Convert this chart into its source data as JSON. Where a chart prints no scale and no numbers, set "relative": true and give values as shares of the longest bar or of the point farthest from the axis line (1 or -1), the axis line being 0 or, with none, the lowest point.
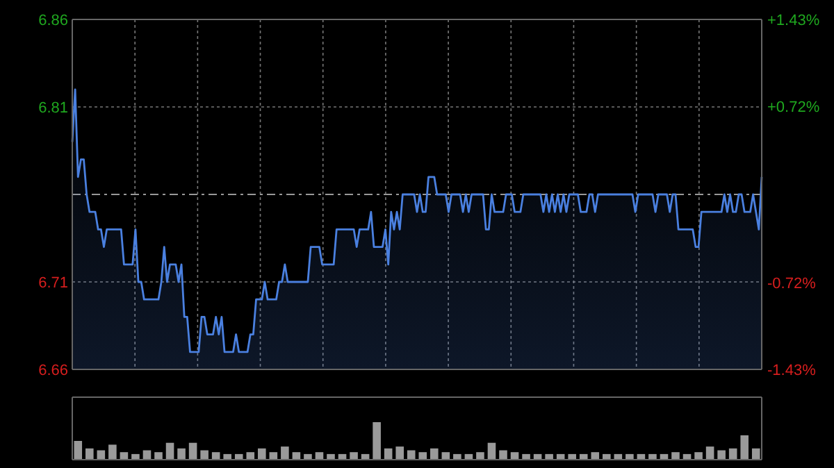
{
  "chart_data": [
    {
      "type": "area",
      "categories": [
        null,
        null,
        null,
        null,
        null,
        null,
        null,
        null,
        null,
        null,
        null,
        null,
        null,
        null,
        null,
        null,
        null,
        null,
        null,
        null,
        null,
        null,
        null,
        null,
        null,
        null,
        null,
        null,
        null,
        null,
        null,
        null,
        null,
        null,
        null,
        null,
        null,
        null,
        null,
        null,
        null,
        null,
        null,
        null,
        null,
        null,
        null,
        null,
        null,
        null,
        null,
        null,
        null,
        null,
        null,
        null,
        null,
        null,
        null,
        null,
        null,
        null,
        null,
        null,
        null,
        null,
        null,
        null,
        null,
        null,
        null,
        null,
        null,
        null,
        null,
        null,
        null,
        null,
        null,
        null,
        null,
        null,
        null,
        null,
        null,
        null,
        null,
        null,
        null,
        null,
        null,
        null,
        null,
        null,
        null,
        null,
        null,
        null,
        null,
        null,
        null,
        null,
        null,
        null,
        null,
        null,
        null,
        null,
        null,
        null,
        null,
        null,
        null,
        null,
        null,
        null,
        null,
        null,
        null,
        null,
        null,
        null,
        null,
        null,
        null,
        null,
        null,
        null,
        null,
        null,
        null,
        null,
        null,
        null,
        null,
        null,
        null,
        null,
        null,
        null,
        null,
        null,
        null,
        null,
        null,
        null,
        null,
        null,
        null,
        null,
        null,
        null,
        null,
        null,
        null,
        null,
        null,
        null,
        null,
        null,
        null,
        null,
        null,
        null,
        null,
        null,
        null,
        null,
        null,
        null,
        null,
        null,
        null,
        null,
        null,
        null,
        null,
        null,
        null,
        null,
        null,
        null,
        null,
        null,
        null,
        null,
        null,
        null,
        null,
        null,
        null,
        null,
        null,
        null,
        null,
        null,
        null,
        null,
        null,
        null,
        null,
        null,
        null,
        null,
        null,
        null,
        null,
        null,
        null,
        null,
        null,
        null,
        null,
        null,
        null,
        null,
        null,
        null,
        null,
        null,
        null,
        null,
        null,
        null,
        null,
        null,
        null,
        null,
        null,
        null,
        null,
        null,
        null,
        null,
        null,
        null,
        null,
        null,
        null,
        null,
        null
      ],
      "series": [
        {
          "color": "#4a80e0",
          "values": [
            6.79,
            6.82,
            6.77,
            6.78,
            6.78,
            6.76,
            6.75,
            6.75,
            6.75,
            6.74,
            6.74,
            6.73,
            6.74,
            6.74,
            6.74,
            6.74,
            6.74,
            6.74,
            6.72,
            6.72,
            6.72,
            6.72,
            6.74,
            6.71,
            6.71,
            6.7,
            6.7,
            6.7,
            6.7,
            6.7,
            6.7,
            6.71,
            6.73,
            6.71,
            6.72,
            6.72,
            6.72,
            6.71,
            6.72,
            6.69,
            6.69,
            6.67,
            6.67,
            6.67,
            6.67,
            6.69,
            6.69,
            6.68,
            6.68,
            6.68,
            6.69,
            6.68,
            6.69,
            6.67,
            6.67,
            6.67,
            6.67,
            6.68,
            6.67,
            6.67,
            6.67,
            6.67,
            6.68,
            6.68,
            6.7,
            6.7,
            6.7,
            6.71,
            6.7,
            6.7,
            6.7,
            6.7,
            6.71,
            6.71,
            6.72,
            6.71,
            6.71,
            6.71,
            6.71,
            6.71,
            6.71,
            6.71,
            6.71,
            6.73,
            6.73,
            6.73,
            6.73,
            6.72,
            6.72,
            6.72,
            6.72,
            6.72,
            6.74,
            6.74,
            6.74,
            6.74,
            6.74,
            6.74,
            6.74,
            6.73,
            6.74,
            6.74,
            6.74,
            6.74,
            6.75,
            6.73,
            6.73,
            6.73,
            6.73,
            6.74,
            6.72,
            6.75,
            6.74,
            6.75,
            6.74,
            6.76,
            6.76,
            6.76,
            6.76,
            6.76,
            6.75,
            6.76,
            6.75,
            6.75,
            6.77,
            6.77,
            6.77,
            6.76,
            6.76,
            6.76,
            6.76,
            6.75,
            6.76,
            6.76,
            6.76,
            6.76,
            6.75,
            6.76,
            6.75,
            6.76,
            6.76,
            6.76,
            6.76,
            6.76,
            6.74,
            6.74,
            6.76,
            6.75,
            6.75,
            6.75,
            6.75,
            6.76,
            6.76,
            6.76,
            6.75,
            6.75,
            6.75,
            6.76,
            6.76,
            6.76,
            6.76,
            6.76,
            6.76,
            6.76,
            6.75,
            6.76,
            6.75,
            6.76,
            6.75,
            6.76,
            6.75,
            6.76,
            6.75,
            6.76,
            6.76,
            6.76,
            6.76,
            6.75,
            6.75,
            6.75,
            6.76,
            6.76,
            6.75,
            6.76,
            6.76,
            6.76,
            6.76,
            6.76,
            6.76,
            6.76,
            6.76,
            6.76,
            6.76,
            6.76,
            6.76,
            6.76,
            6.75,
            6.76,
            6.76,
            6.76,
            6.76,
            6.76,
            6.76,
            6.75,
            6.76,
            6.76,
            6.76,
            6.76,
            6.75,
            6.76,
            6.76,
            6.74,
            6.74,
            6.74,
            6.74,
            6.74,
            6.74,
            6.73,
            6.73,
            6.75,
            6.75,
            6.75,
            6.75,
            6.75,
            6.75,
            6.75,
            6.75,
            6.76,
            6.75,
            6.76,
            6.75,
            6.75,
            6.76,
            6.76,
            6.75,
            6.75,
            6.75,
            6.76,
            6.75,
            6.74,
            6.77
          ]
        }
      ],
      "ylim": [
        6.66,
        6.86
      ],
      "yticks": [
        6.66,
        6.71,
        6.81,
        6.86
      ],
      "y2lim": [
        -1.43,
        1.43
      ],
      "y2ticks": [
        {
          "value": -1.43,
          "label": "-1.43%"
        },
        {
          "value": -0.72,
          "label": "-0.72%"
        },
        {
          "value": 0.72,
          "label": "+0.72%"
        },
        {
          "value": 1.43,
          "label": "+1.43%"
        }
      ],
      "ref_lines": [
        {
          "axis": "y",
          "value": 6.76,
          "line_style": "dashed"
        }
      ],
      "grid": true,
      "tick_labels": "y"
    },
    {
      "type": "bar",
      "relative": true,
      "tick_labels": false,
      "categories": [
        null,
        null,
        null,
        null,
        null,
        null,
        null,
        null,
        null,
        null,
        null,
        null,
        null,
        null,
        null,
        null,
        null,
        null,
        null,
        null,
        null,
        null,
        null,
        null,
        null,
        null,
        null,
        null,
        null,
        null,
        null,
        null,
        null,
        null,
        null,
        null,
        null,
        null,
        null,
        null,
        null,
        null,
        null,
        null,
        null,
        null,
        null,
        null,
        null,
        null,
        null,
        null,
        null,
        null,
        null,
        null,
        null,
        null,
        null,
        null
      ],
      "series": [
        {
          "color": "#9a9a9a",
          "values": [
            0.5,
            0.3,
            0.25,
            0.4,
            0.2,
            0.15,
            0.25,
            0.2,
            0.45,
            0.3,
            0.45,
            0.25,
            0.2,
            0.15,
            0.15,
            0.2,
            0.3,
            0.2,
            0.35,
            0.2,
            0.15,
            0.2,
            0.15,
            0.15,
            0.2,
            0.15,
            1,
            0.3,
            0.35,
            0.25,
            0.2,
            0.3,
            0.2,
            0.15,
            0.15,
            0.2,
            0.45,
            0.25,
            0.2,
            0.15,
            0.15,
            0.15,
            0.15,
            0.15,
            0.15,
            0.2,
            0.15,
            0.15,
            0.15,
            0.15,
            0.15,
            0.15,
            0.2,
            0.15,
            0.2,
            0.35,
            0.25,
            0.3,
            0.65,
            0.3
          ]
        }
      ]
    }
  ]
}
